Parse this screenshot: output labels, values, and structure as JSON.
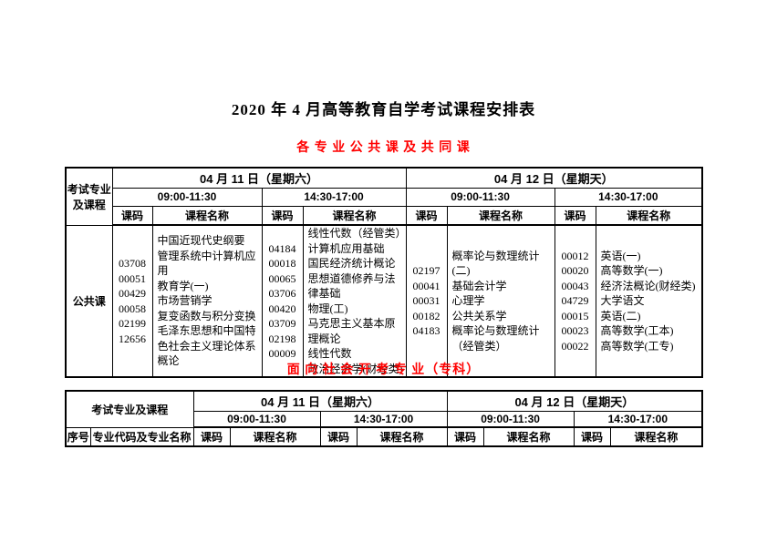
{
  "page_title": "2020 年 4 月高等教育自学考试课程安排表",
  "colors": {
    "heading_red": "#ff0000",
    "text": "#000000",
    "border": "#000000",
    "background": "#ffffff"
  },
  "section_public": {
    "heading": "各 专 业 公 共 课 及 共 同 课",
    "table": {
      "corner_label": "考试专业及课程",
      "day1": "04 月 11 日（星期六）",
      "day2": "04 月 12 日（星期天）",
      "time_am": "09:00-11:30",
      "time_pm": "14:30-17:00",
      "code_header": "课码",
      "name_header": "课程名称",
      "row_label": "公共课",
      "slots": [
        {
          "day": "04 月 11 日（星期六）",
          "time": "09:00-11:30",
          "codes": [
            "03708",
            "00051",
            "00429",
            "00058",
            "02199",
            "12656"
          ],
          "names": [
            "中国近现代史纲要",
            "管理系统中计算机应用",
            "教育学(一)",
            "市场营销学",
            "复变函数与积分变换",
            "毛泽东思想和中国特色社会主义理论体系概论"
          ]
        },
        {
          "day": "04 月 11 日（星期六）",
          "time": "14:30-17:00",
          "codes": [
            "04184",
            "00018",
            "00065",
            "03706",
            "00420",
            "03709",
            "02198",
            "00009"
          ],
          "names": [
            "线性代数（经管类）",
            "计算机应用基础",
            "国民经济统计概论",
            "思想道德修养与法律基础",
            "物理(工)",
            "马克思主义基本原理概论",
            "线性代数",
            "政治经济学(财经类)"
          ]
        },
        {
          "day": "04 月 12 日（星期天）",
          "time": "09:00-11:30",
          "codes": [
            "02197",
            "00041",
            "00031",
            "00182",
            "04183"
          ],
          "names": [
            "概率论与数理统计(二)",
            "基础会计学",
            "心理学",
            "公共关系学",
            "概率论与数理统计（经管类）"
          ]
        },
        {
          "day": "04 月 12 日（星期天）",
          "time": "14:30-17:00",
          "codes": [
            "00012",
            "00020",
            "00043",
            "04729",
            "00015",
            "00023",
            "00022"
          ],
          "names": [
            "英语(一)",
            "高等数学(一)",
            "经济法概论(财经类)",
            "大学语文",
            "英语(二)",
            "高等数学(工本)",
            "高等数学(工专)"
          ]
        }
      ]
    }
  },
  "section_social": {
    "heading": "面 向 社 会 开 考 专 业（专科）",
    "table": {
      "corner_label": "考试专业及课程",
      "day1": "04 月 11 日（星期六）",
      "day2": "04 月 12 日（星期天）",
      "time_am": "09:00-11:30",
      "time_pm": "14:30-17:00",
      "seq_header": "序号",
      "major_header": "专业代码及专业名称",
      "code_header": "课码",
      "name_header": "课程名称"
    }
  }
}
